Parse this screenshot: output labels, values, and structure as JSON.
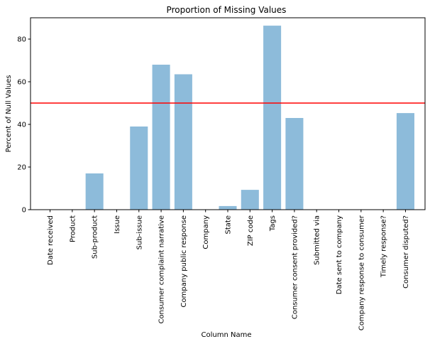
{
  "chart_data": {
    "type": "bar",
    "title": "Proportion of Missing Values",
    "xlabel": "Column Name",
    "ylabel": "Percent of Null Values",
    "ylim": [
      0,
      90
    ],
    "yticks": [
      0,
      20,
      40,
      60,
      80
    ],
    "grid": false,
    "bar_color": "#8dbbda",
    "reference_line": {
      "y": 50,
      "color": "#ff0000"
    },
    "categories": [
      "Date received",
      "Product",
      "Sub-product",
      "Issue",
      "Sub-issue",
      "Consumer complaint narrative",
      "Company public response",
      "Company",
      "State",
      "ZIP code",
      "Tags",
      "Consumer consent provided?",
      "Submitted via",
      "Date sent to company",
      "Company response to consumer",
      "Timely response?",
      "Consumer disputed?"
    ],
    "values": [
      0,
      0,
      17,
      0,
      39,
      68,
      63.5,
      0,
      1.7,
      9.3,
      86.3,
      43,
      0,
      0,
      0,
      0,
      45.3
    ]
  }
}
